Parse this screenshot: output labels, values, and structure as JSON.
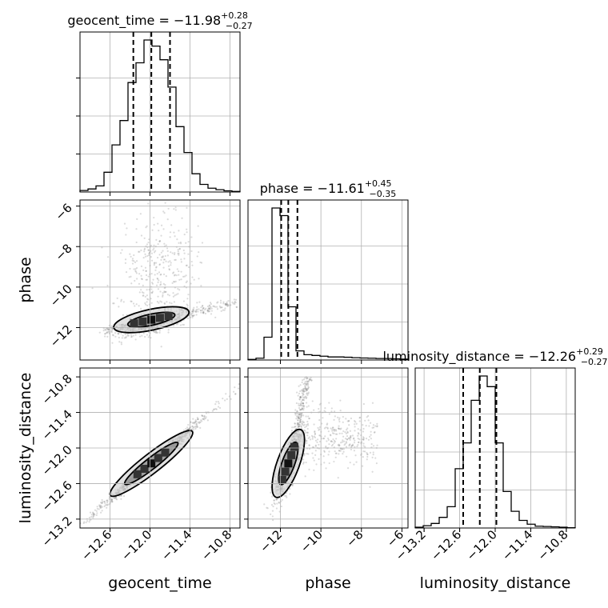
{
  "chart_data": {
    "type": "corner",
    "parameters": [
      {
        "name": "geocent_time",
        "label": "geocent_time",
        "title_prefix": "geocent_time = ",
        "median": "−11.98",
        "plus": "+0.28",
        "minus": "−0.27",
        "range": [
          -13.05,
          -10.65
        ],
        "ticks": [
          -12.6,
          -12.0,
          -11.4,
          -10.8
        ],
        "tick_labels": [
          "−12.6",
          "−12.0",
          "−11.4",
          "−10.8"
        ],
        "quantiles": [
          -12.25,
          -11.98,
          -11.7
        ],
        "hist": [
          0.01,
          0.02,
          0.04,
          0.13,
          0.31,
          0.47,
          0.72,
          0.85,
          1.0,
          0.96,
          0.87,
          0.69,
          0.43,
          0.26,
          0.12,
          0.05,
          0.025,
          0.015,
          0.008,
          0.004
        ]
      },
      {
        "name": "phase",
        "label": "phase",
        "title_prefix": "phase = ",
        "median": "−11.61",
        "plus": "+0.45",
        "minus": "−0.35",
        "range": [
          -13.6,
          -5.7
        ],
        "ticks": [
          -12,
          -10,
          -8,
          -6
        ],
        "tick_labels": [
          "−12",
          "−10",
          "−8",
          "−6"
        ],
        "quantiles": [
          -11.96,
          -11.61,
          -11.16
        ],
        "hist": [
          0.004,
          0.012,
          0.15,
          1.0,
          0.95,
          0.35,
          0.06,
          0.035,
          0.03,
          0.025,
          0.02,
          0.02,
          0.018,
          0.015,
          0.013,
          0.012,
          0.01,
          0.01,
          0.008,
          0.006
        ]
      },
      {
        "name": "luminosity_distance",
        "label": "luminosity_distance",
        "title_prefix": "luminosity_distance = ",
        "median": "−12.26",
        "plus": "+0.29",
        "minus": "−0.27",
        "range": [
          -13.35,
          -10.65
        ],
        "ticks": [
          -13.2,
          -12.6,
          -12.0,
          -11.4,
          -10.8
        ],
        "tick_labels": [
          "−13.2",
          "−12.6",
          "−12.0",
          "−11.4",
          "−10.8"
        ],
        "quantiles": [
          -12.54,
          -12.26,
          -11.98
        ],
        "hist": [
          0.005,
          0.015,
          0.03,
          0.07,
          0.14,
          0.39,
          0.56,
          0.84,
          1.0,
          0.93,
          0.56,
          0.24,
          0.11,
          0.05,
          0.025,
          0.012,
          0.01,
          0.008,
          0.005,
          0.002
        ]
      }
    ],
    "grid": true,
    "colors": {
      "hist": "#000000",
      "scatter": "#7f7f7f",
      "contour": "#000000",
      "grid": "#b0b0b0"
    }
  }
}
